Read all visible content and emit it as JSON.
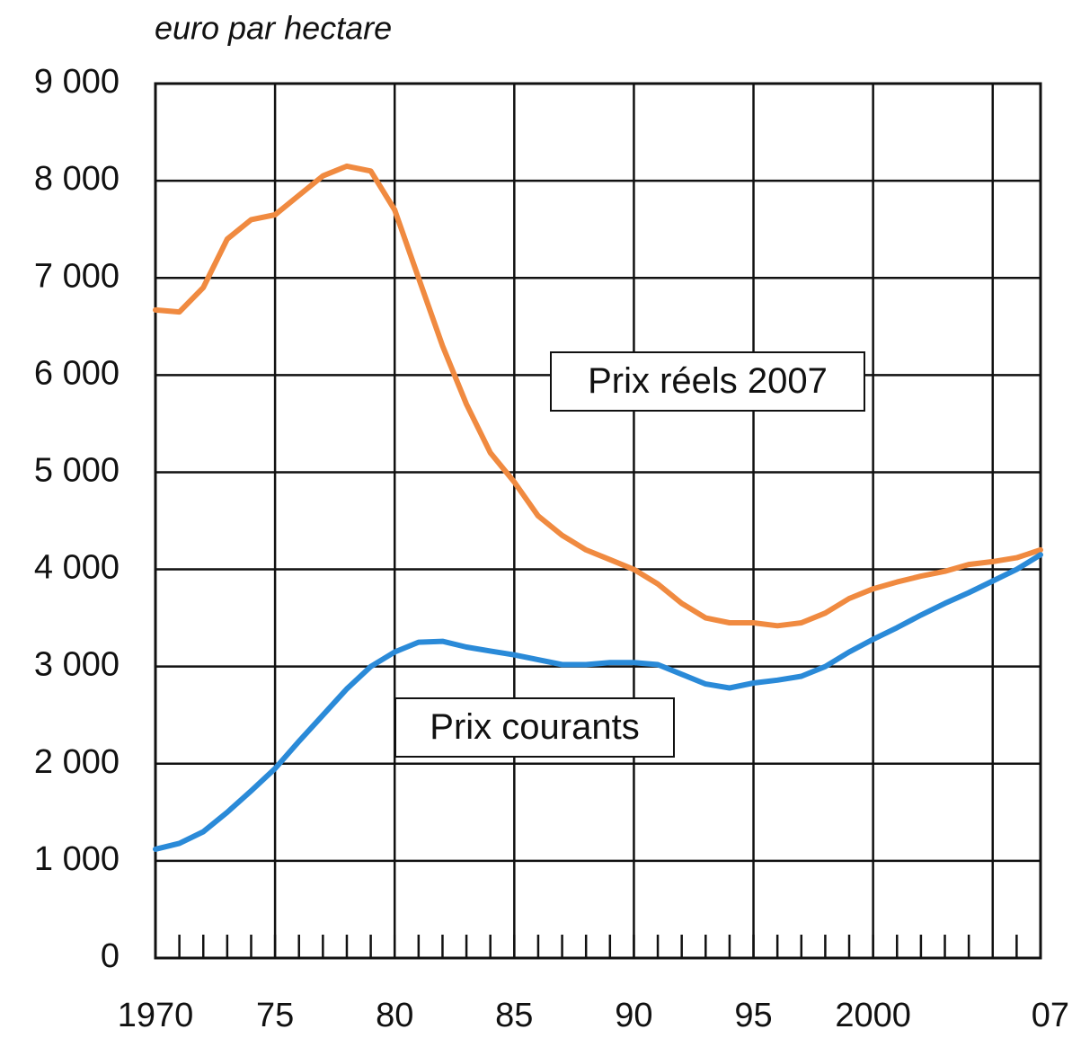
{
  "chart_data": {
    "type": "line",
    "ylabel": "euro par hectare",
    "x": [
      1970,
      1971,
      1972,
      1973,
      1974,
      1975,
      1976,
      1977,
      1978,
      1979,
      1980,
      1981,
      1982,
      1983,
      1984,
      1985,
      1986,
      1987,
      1988,
      1989,
      1990,
      1991,
      1992,
      1993,
      1994,
      1995,
      1996,
      1997,
      1998,
      1999,
      2000,
      2001,
      2002,
      2003,
      2004,
      2005,
      2006,
      2007
    ],
    "series": [
      {
        "name": "Prix réels 2007",
        "color": "#f08a40",
        "values": [
          6670,
          6650,
          6900,
          7400,
          7600,
          7650,
          7850,
          8050,
          8150,
          8100,
          7700,
          7000,
          6300,
          5700,
          5200,
          4900,
          4550,
          4350,
          4200,
          4100,
          4000,
          3850,
          3650,
          3500,
          3450,
          3450,
          3420,
          3450,
          3550,
          3700,
          3800,
          3870,
          3930,
          3980,
          4050,
          4080,
          4120,
          4200
        ]
      },
      {
        "name": "Prix courants",
        "color": "#2a8ad8",
        "values": [
          1120,
          1180,
          1300,
          1500,
          1720,
          1950,
          2230,
          2500,
          2770,
          3000,
          3150,
          3250,
          3260,
          3200,
          3160,
          3120,
          3070,
          3020,
          3020,
          3040,
          3040,
          3020,
          2920,
          2820,
          2780,
          2830,
          2860,
          2900,
          3000,
          3150,
          3280,
          3400,
          3530,
          3650,
          3760,
          3880,
          4000,
          4150
        ]
      }
    ],
    "xlim": [
      1970,
      2007
    ],
    "xticks": [
      1970,
      {
        "value": 1975,
        "label": "75"
      },
      {
        "value": 1980,
        "label": "80"
      },
      {
        "value": 1985,
        "label": "85"
      },
      {
        "value": 1990,
        "label": "90"
      },
      {
        "value": 1995,
        "label": "95"
      },
      2000,
      {
        "value": 2007,
        "label": "07"
      }
    ],
    "xgrid": [
      1970,
      1975,
      1980,
      1985,
      1990,
      1995,
      2000,
      2005,
      2007
    ],
    "xminor": [
      1971,
      1972,
      1973,
      1974,
      1976,
      1977,
      1978,
      1979,
      1981,
      1982,
      1983,
      1984,
      1986,
      1987,
      1988,
      1989,
      1991,
      1992,
      1993,
      1994,
      1996,
      1997,
      1998,
      1999,
      2001,
      2002,
      2003,
      2004,
      2006
    ],
    "ylim": [
      0,
      9000
    ],
    "yticks": [
      0,
      {
        "value": 1000,
        "label": "1 000"
      },
      {
        "value": 2000,
        "label": "2 000"
      },
      {
        "value": 3000,
        "label": "3 000"
      },
      {
        "value": 4000,
        "label": "4 000"
      },
      {
        "value": 5000,
        "label": "5 000"
      },
      {
        "value": 6000,
        "label": "6 000"
      },
      {
        "value": 7000,
        "label": "7 000"
      },
      {
        "value": 8000,
        "label": "8 000"
      },
      {
        "value": 9000,
        "label": "9 000"
      }
    ],
    "grid": true
  }
}
